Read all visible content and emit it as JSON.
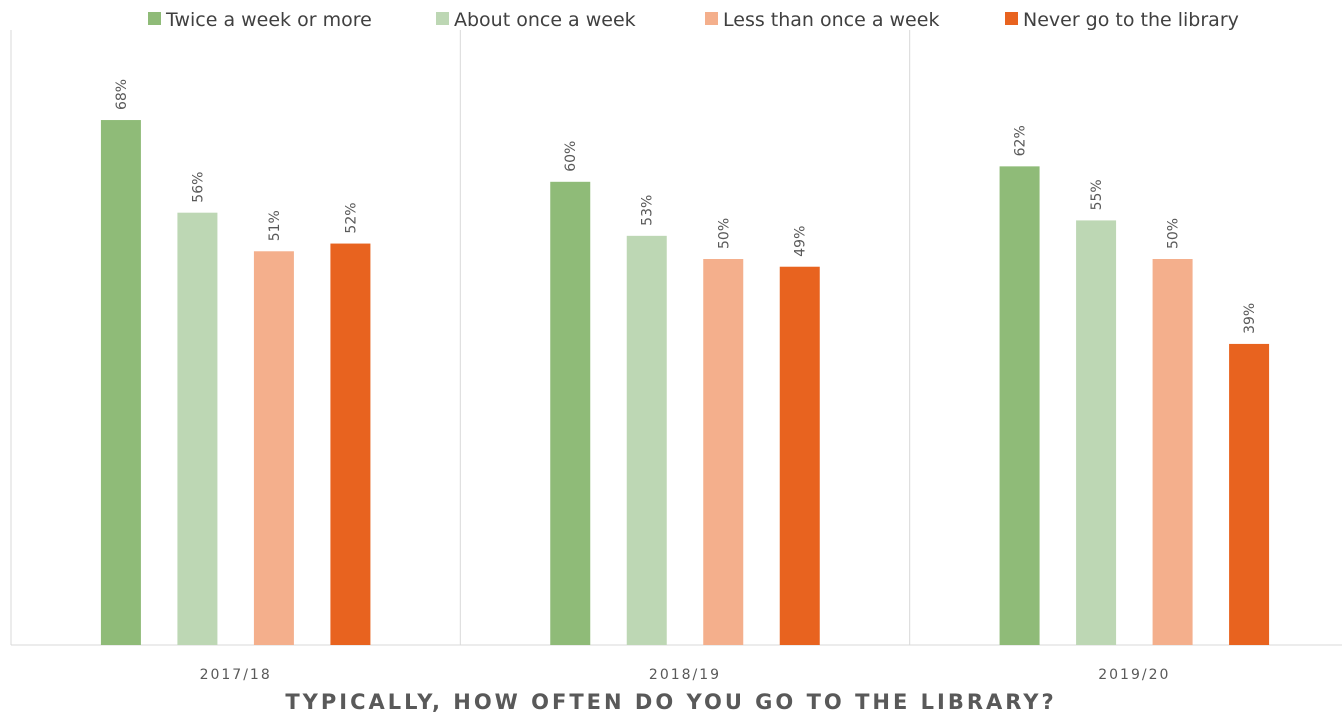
{
  "chart_data": {
    "type": "bar",
    "xlabel": "TYPICALLY, HOW OFTEN DO YOU GO TO THE LIBRARY?",
    "ylabel": "",
    "categories": [
      "2017/18",
      "2018/19",
      "2019/20"
    ],
    "series": [
      {
        "name": "Twice a week or more",
        "values": [
          68,
          60,
          62
        ],
        "labels": [
          "68%",
          "60%",
          "62%"
        ],
        "color": "#8fbb78"
      },
      {
        "name": "About once a week",
        "values": [
          56,
          53,
          55
        ],
        "labels": [
          "56%",
          "53%",
          "55%"
        ],
        "color": "#bdd7b4"
      },
      {
        "name": "Less than once a week",
        "values": [
          51,
          50,
          50
        ],
        "labels": [
          "51%",
          "50%",
          "50%"
        ],
        "color": "#f4af8c"
      },
      {
        "name": "Never go to the library",
        "values": [
          52,
          49,
          39
        ],
        "labels": [
          "52%",
          "49%",
          "39%"
        ],
        "color": "#e8631f"
      }
    ],
    "ylim": [
      0,
      80
    ],
    "value_suffix": "%",
    "legend_position": "top",
    "grid": false,
    "category_separators": true
  }
}
